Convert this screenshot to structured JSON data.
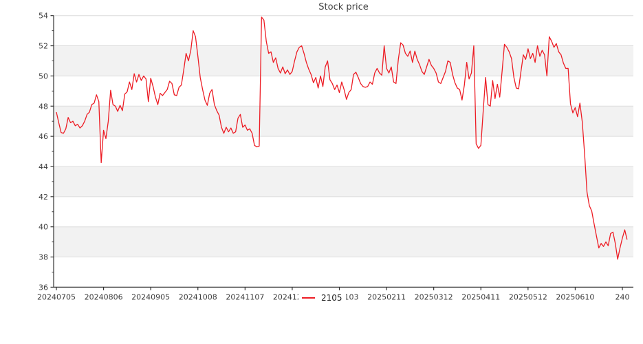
{
  "title": "Stock price",
  "legend": {
    "label": "2105",
    "marker_color": "#ed1c24"
  },
  "colors": {
    "background": "#ffffff",
    "line": "#ed1c24",
    "band": "#f2f2f2",
    "grid": "#dcdcdc",
    "axis": "#333333",
    "tick_label": "#3d3d3d",
    "title": "#3f3f3f"
  },
  "chart_data": {
    "type": "line",
    "title": "Stock price",
    "xlabel": "",
    "ylabel": "",
    "ylim": [
      36,
      54
    ],
    "y_ticks": [
      36,
      38,
      40,
      42,
      44,
      46,
      48,
      50,
      52,
      54
    ],
    "y_minor_step": 1,
    "grid": "horizontal-major",
    "background_bands": "alternating light gray between even gridlines (38-40, 42-44, 46-48, 50-52)",
    "legend_position": "lower center outside plot",
    "x_tick_interval": 20,
    "x_tick_labels": [
      "20240705",
      "20240806",
      "20240905",
      "20241008",
      "20241107",
      "20241206",
      "20250103",
      "20250211",
      "20250312",
      "20250411",
      "20250512",
      "20250610",
      "240"
    ],
    "series": [
      {
        "name": "2105",
        "color": "#ed1c24",
        "values": [
          47.6,
          46.9,
          46.25,
          46.2,
          46.5,
          47.25,
          46.9,
          47.0,
          46.7,
          46.8,
          46.55,
          46.7,
          47.0,
          47.45,
          47.6,
          48.1,
          48.2,
          48.75,
          48.3,
          44.25,
          46.4,
          45.85,
          47.0,
          49.05,
          48.1,
          48.0,
          47.65,
          48.05,
          47.7,
          48.8,
          48.95,
          49.6,
          49.1,
          50.15,
          49.6,
          50.1,
          49.7,
          50.0,
          49.8,
          48.3,
          49.85,
          49.3,
          48.6,
          48.1,
          48.85,
          48.7,
          48.9,
          49.1,
          49.65,
          49.5,
          48.75,
          48.7,
          49.25,
          49.4,
          50.4,
          51.5,
          51.0,
          51.7,
          53.0,
          52.6,
          51.3,
          49.9,
          49.1,
          48.4,
          48.05,
          48.85,
          49.1,
          48.1,
          47.7,
          47.4,
          46.6,
          46.2,
          46.6,
          46.3,
          46.55,
          46.2,
          46.3,
          47.2,
          47.45,
          46.6,
          46.75,
          46.4,
          46.5,
          46.2,
          45.4,
          45.3,
          45.35,
          53.9,
          53.7,
          52.3,
          51.5,
          51.6,
          50.9,
          51.2,
          50.5,
          50.2,
          50.6,
          50.15,
          50.4,
          50.1,
          50.3,
          51.0,
          51.6,
          51.9,
          52.0,
          51.5,
          50.9,
          50.45,
          50.1,
          49.55,
          49.9,
          49.2,
          50.0,
          49.3,
          50.6,
          51.0,
          49.75,
          49.5,
          49.1,
          49.4,
          48.9,
          49.6,
          49.1,
          48.45,
          48.9,
          49.1,
          50.1,
          50.25,
          49.9,
          49.5,
          49.3,
          49.25,
          49.3,
          49.6,
          49.45,
          50.2,
          50.5,
          50.2,
          50.05,
          52.0,
          50.5,
          50.2,
          50.6,
          49.6,
          49.5,
          51.1,
          52.2,
          52.05,
          51.5,
          51.3,
          51.65,
          50.9,
          51.65,
          51.1,
          50.75,
          50.3,
          50.1,
          50.6,
          51.1,
          50.7,
          50.5,
          50.2,
          49.6,
          49.5,
          49.9,
          50.3,
          51.0,
          50.9,
          50.1,
          49.55,
          49.2,
          49.1,
          48.4,
          49.4,
          50.9,
          49.8,
          50.2,
          52.0,
          45.5,
          45.2,
          45.4,
          47.7,
          49.9,
          48.1,
          48.0,
          49.7,
          48.5,
          49.45,
          48.6,
          50.3,
          52.1,
          51.9,
          51.6,
          51.15,
          49.9,
          49.2,
          49.15,
          50.3,
          51.4,
          51.1,
          51.8,
          51.15,
          51.5,
          50.9,
          52.0,
          51.3,
          51.7,
          51.4,
          50.0,
          52.6,
          52.3,
          51.9,
          52.15,
          51.6,
          51.4,
          50.85,
          50.5,
          50.5,
          48.15,
          47.55,
          47.9,
          47.3,
          48.2,
          46.95,
          44.8,
          42.3,
          41.4,
          41.05,
          40.2,
          39.4,
          38.6,
          38.9,
          38.7,
          39.0,
          38.75,
          39.55,
          39.65,
          38.9,
          37.85,
          38.6,
          39.25,
          39.8,
          39.15
        ]
      }
    ]
  }
}
